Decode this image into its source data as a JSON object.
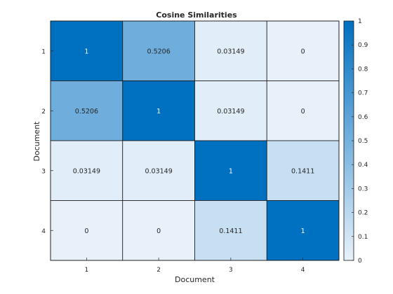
{
  "chart_data": {
    "type": "heatmap",
    "title": "Cosine Similarities",
    "xlabel": "Document",
    "ylabel": "Document",
    "x_categories": [
      "1",
      "2",
      "3",
      "4"
    ],
    "y_categories": [
      "1",
      "2",
      "3",
      "4"
    ],
    "values": [
      [
        1,
        0.5206,
        0.03149,
        0
      ],
      [
        0.5206,
        1,
        0.03149,
        0
      ],
      [
        0.03149,
        0.03149,
        1,
        0.1411
      ],
      [
        0,
        0,
        0.1411,
        1
      ]
    ],
    "cell_labels": [
      [
        "1",
        "0.5206",
        "0.03149",
        "0"
      ],
      [
        "0.5206",
        "1",
        "0.03149",
        "0"
      ],
      [
        "0.03149",
        "0.03149",
        "1",
        "0.1411"
      ],
      [
        "0",
        "0",
        "0.1411",
        "1"
      ]
    ],
    "color_range": [
      0,
      1
    ],
    "colorbar_ticks": [
      "0",
      "0.1",
      "0.2",
      "0.3",
      "0.4",
      "0.5",
      "0.6",
      "0.7",
      "0.8",
      "0.9",
      "1"
    ],
    "colormap": {
      "low": "#e8f1fa",
      "high": "#0070c0"
    },
    "grid": false,
    "colorbar_placement": "right"
  }
}
